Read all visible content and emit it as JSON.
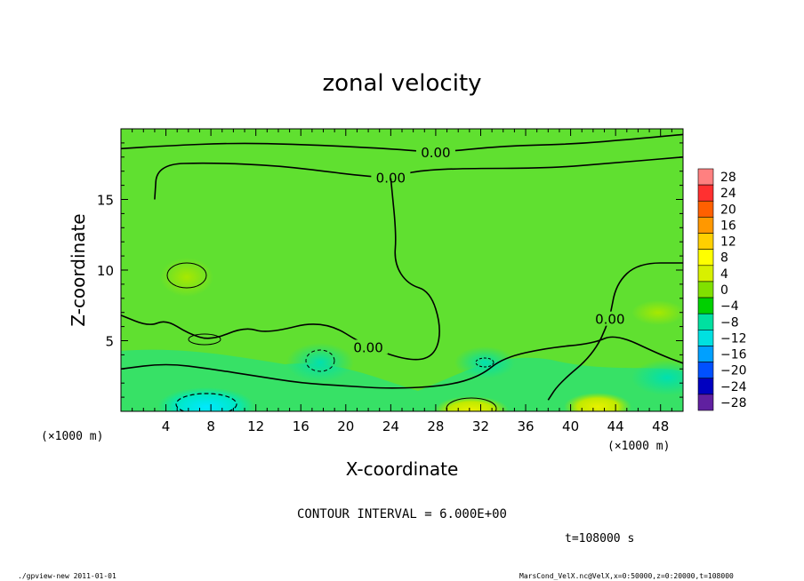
{
  "chart_data": {
    "type": "heatmap",
    "subtype": "filled-contour",
    "title": "zonal velocity",
    "xlabel": "X-coordinate",
    "ylabel": "Z-coordinate",
    "x_unit_label": "(×1000 m)",
    "y_unit_label": "(×1000 m)",
    "xlim": [
      0,
      50
    ],
    "ylim": [
      0,
      20
    ],
    "x_ticks": [
      4,
      8,
      12,
      16,
      20,
      24,
      28,
      32,
      36,
      40,
      44,
      48
    ],
    "y_ticks": [
      5,
      10,
      15
    ],
    "contour_interval_text": "CONTOUR INTERVAL = 6.000E+00",
    "time_text": "t=108000 s",
    "contour_label": "0.00",
    "colorbar": {
      "levels": [
        28,
        24,
        20,
        16,
        12,
        8,
        4,
        0,
        -4,
        -8,
        -12,
        -16,
        -20,
        -24,
        -28
      ],
      "colors": [
        "#ff8080",
        "#ff3030",
        "#ff6000",
        "#ff9800",
        "#ffd000",
        "#ffff00",
        "#d8f000",
        "#80e000",
        "#00d000",
        "#00e0a0",
        "#00e0e0",
        "#00a0ff",
        "#0050ff",
        "#0000c0",
        "#6020a0"
      ]
    },
    "contour_lines": [
      {
        "label": "0.00",
        "points": [
          [
            0,
            18.6
          ],
          [
            4,
            18.8
          ],
          [
            10,
            19.0
          ],
          [
            16,
            18.9
          ],
          [
            24,
            18.6
          ],
          [
            28,
            18.3
          ],
          [
            34,
            18.8
          ],
          [
            40,
            18.9
          ],
          [
            46,
            19.3
          ],
          [
            50,
            19.6
          ]
        ]
      },
      {
        "label": "0.00",
        "points": [
          [
            3,
            15.0
          ],
          [
            3.2,
            17.5
          ],
          [
            8,
            17.6
          ],
          [
            14,
            17.4
          ],
          [
            20,
            16.8
          ],
          [
            24,
            16.5
          ],
          [
            26,
            17.0
          ],
          [
            30,
            17.2
          ],
          [
            38,
            17.2
          ],
          [
            44,
            17.6
          ],
          [
            50,
            18.0
          ]
        ]
      },
      {
        "label": "0.00",
        "points": [
          [
            24,
            16.5
          ],
          [
            24.5,
            12.5
          ],
          [
            24.3,
            10.5
          ],
          [
            25.5,
            9.0
          ],
          [
            27.5,
            8.5
          ],
          [
            28.5,
            6.0
          ],
          [
            28.0,
            4.0
          ],
          [
            26.0,
            3.5
          ],
          [
            22.0,
            4.5
          ],
          [
            18.0,
            6.5
          ],
          [
            13.0,
            5.5
          ],
          [
            11.0,
            6.0
          ],
          [
            8.0,
            5.0
          ],
          [
            6.0,
            5.5
          ],
          [
            4.0,
            6.5
          ],
          [
            2.5,
            6.0
          ],
          [
            0,
            6.8
          ]
        ]
      },
      {
        "label": "",
        "points": [
          [
            0,
            3.0
          ],
          [
            4,
            3.4
          ],
          [
            8,
            3.0
          ],
          [
            12,
            2.5
          ],
          [
            16,
            2.0
          ],
          [
            20,
            1.8
          ],
          [
            24,
            1.6
          ],
          [
            29,
            1.8
          ],
          [
            32,
            2.5
          ],
          [
            34,
            3.8
          ],
          [
            38,
            4.5
          ],
          [
            42,
            4.8
          ],
          [
            44,
            5.5
          ],
          [
            48,
            4.0
          ],
          [
            50,
            3.4
          ]
        ]
      },
      {
        "label": "0.00",
        "points": [
          [
            50,
            10.5
          ],
          [
            46,
            10.5
          ],
          [
            44,
            9.0
          ],
          [
            43.5,
            6.5
          ],
          [
            42.0,
            4.0
          ],
          [
            39.0,
            2.0
          ],
          [
            38.0,
            0.8
          ]
        ]
      }
    ],
    "features": [
      {
        "kind": "negative minimum",
        "x": 7.5,
        "z": 0.5,
        "range": "-16 to -12"
      },
      {
        "kind": "positive maximum",
        "x": 30.5,
        "z": 0.3,
        "range": "4 to 8"
      },
      {
        "kind": "positive maximum",
        "x": 41.5,
        "z": 0.5,
        "range": "4 to 8"
      },
      {
        "kind": "weak positive",
        "x": 6.0,
        "z": 10.0,
        "range": "0 to 4"
      }
    ]
  },
  "footer": {
    "left_text": "./gpview-new  2011-01-01",
    "right_text": "MarsCond_VelX.nc@VelX,x=0:50000,z=0:20000,t=108000"
  }
}
